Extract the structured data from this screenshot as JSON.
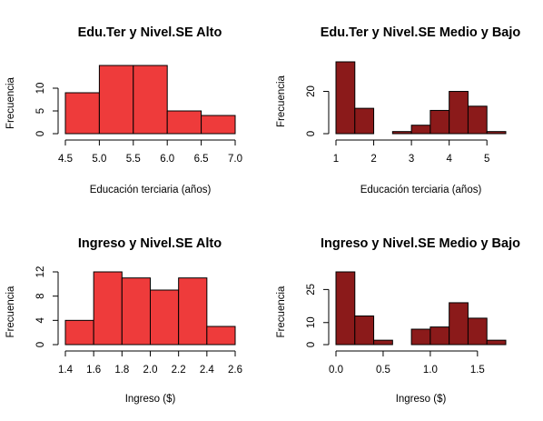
{
  "chart_data": [
    {
      "type": "bar",
      "title": "Edu.Ter y Nivel.SE Alto",
      "xlabel": "Educación terciaria (años)",
      "ylabel": "Frecuencia",
      "bin_edges": [
        4.5,
        5.0,
        5.5,
        6.0,
        6.5,
        7.0
      ],
      "values": [
        9,
        15,
        15,
        5,
        4
      ],
      "xlim": [
        4.5,
        7.0
      ],
      "ylim": [
        0,
        15
      ],
      "x_ticks": [
        4.5,
        5.0,
        5.5,
        6.0,
        6.5,
        7.0
      ],
      "x_tick_labels": [
        "4.5",
        "5.0",
        "5.5",
        "6.0",
        "6.5",
        "7.0"
      ],
      "y_ticks": [
        0,
        5,
        10
      ],
      "y_tick_labels": [
        "0",
        "5",
        "10"
      ],
      "color": "#ee3b3b"
    },
    {
      "type": "bar",
      "title": "Edu.Ter y Nivel.SE Medio y Bajo",
      "xlabel": "Educación terciaria (años)",
      "ylabel": "Frecuencia",
      "bin_edges": [
        1.0,
        1.5,
        2.0,
        2.5,
        3.0,
        3.5,
        4.0,
        4.5,
        5.0,
        5.5
      ],
      "values": [
        34,
        12,
        0,
        1,
        4,
        11,
        20,
        13,
        1
      ],
      "xlim": [
        1.0,
        5.5
      ],
      "ylim": [
        0,
        34
      ],
      "x_ticks": [
        1,
        2,
        3,
        4,
        5
      ],
      "x_tick_labels": [
        "1",
        "2",
        "3",
        "4",
        "5"
      ],
      "y_ticks": [
        0,
        20
      ],
      "y_tick_labels": [
        "0",
        "20"
      ],
      "color": "#8b1a1a"
    },
    {
      "type": "bar",
      "title": "Ingreso y Nivel.SE Alto",
      "xlabel": "Ingreso ($)",
      "ylabel": "Frecuencia",
      "bin_edges": [
        1.4,
        1.6,
        1.8,
        2.0,
        2.2,
        2.4,
        2.6
      ],
      "values": [
        4,
        12,
        11,
        9,
        11,
        3
      ],
      "xlim": [
        1.4,
        2.6
      ],
      "ylim": [
        0,
        12
      ],
      "x_ticks": [
        1.4,
        1.6,
        1.8,
        2.0,
        2.2,
        2.4,
        2.6
      ],
      "x_tick_labels": [
        "1.4",
        "1.6",
        "1.8",
        "2.0",
        "2.2",
        "2.4",
        "2.6"
      ],
      "y_ticks": [
        0,
        4,
        8,
        12
      ],
      "y_tick_labels": [
        "0",
        "4",
        "8",
        "12"
      ],
      "color": "#ee3b3b"
    },
    {
      "type": "bar",
      "title": "Ingreso y Nivel.SE Medio y Bajo",
      "xlabel": "Ingreso ($)",
      "ylabel": "Frecuencia",
      "bin_edges": [
        0.0,
        0.2,
        0.4,
        0.6,
        0.8,
        1.0,
        1.2,
        1.4,
        1.6,
        1.8
      ],
      "values": [
        33,
        13,
        2,
        0,
        7,
        8,
        19,
        12,
        2
      ],
      "xlim": [
        0.0,
        1.8
      ],
      "ylim": [
        0,
        33
      ],
      "x_ticks": [
        0.0,
        0.5,
        1.0,
        1.5
      ],
      "x_tick_labels": [
        "0.0",
        "0.5",
        "1.0",
        "1.5"
      ],
      "y_ticks": [
        0,
        10,
        25
      ],
      "y_tick_labels": [
        "0",
        "10",
        "25"
      ],
      "color": "#8b1a1a"
    }
  ]
}
